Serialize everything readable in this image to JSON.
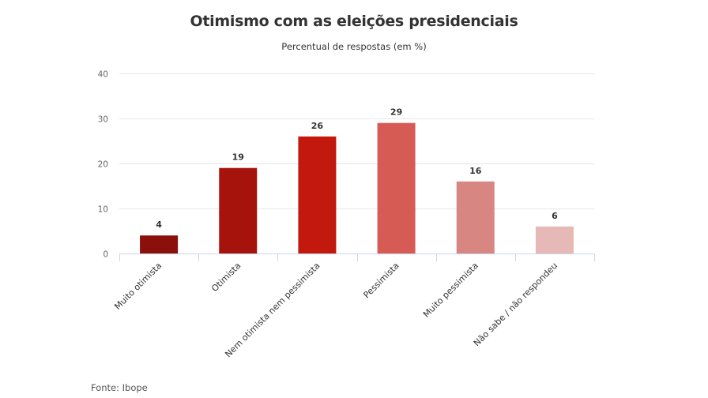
{
  "chart_data": {
    "type": "bar",
    "title": "Otimismo com as eleições presidenciais",
    "subtitle": "Percentual de respostas (em %)",
    "xlabel": "",
    "ylabel": "",
    "ylim": [
      0,
      40
    ],
    "yticks": [
      0,
      10,
      20,
      30,
      40
    ],
    "grid": true,
    "legend": "none",
    "categories": [
      "Muito otimista",
      "Otimista",
      "Nem otimista nem pessimista",
      "Pessimista",
      "Muito pessimista",
      "Não sabe / não respondeu"
    ],
    "values": [
      4,
      19,
      26,
      29,
      16,
      6
    ],
    "colors": [
      "#8b0f0a",
      "#a6130d",
      "#c3180e",
      "#d75b55",
      "#d88682",
      "#e6b9b6"
    ],
    "data_labels": true,
    "source": "Fonte: Ibope"
  }
}
